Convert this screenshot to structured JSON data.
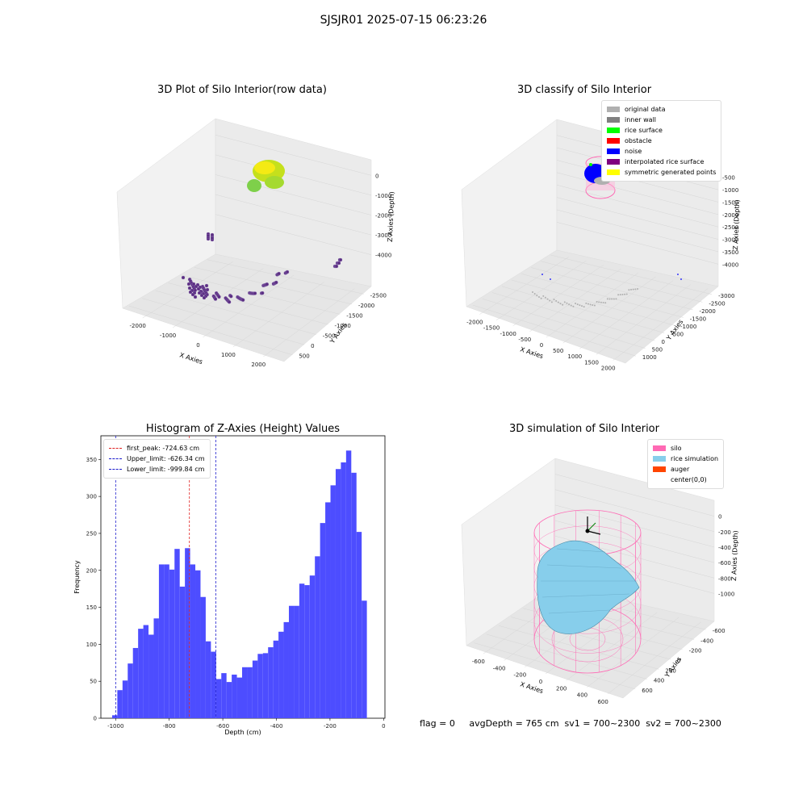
{
  "suptitle": "SJSJR01 2025-07-15 06:23:26",
  "footer": "flag = 0     avgDepth = 765 cm  sv1 = 700~2300  sv2 = 700~2300",
  "panels": {
    "raw": {
      "title": "3D Plot of Silo Interior(row data)",
      "xlabel": "X Axies",
      "ylabel": "Y Axies",
      "zlabel": "Z Axies (Depth)",
      "xticks": [
        "-2000",
        "-1000",
        "0",
        "1000",
        "2000"
      ],
      "yticks": [
        "500",
        "0",
        "-500",
        "-1000",
        "-1500",
        "-2000",
        "-2500"
      ],
      "zticks": [
        "0",
        "-1000",
        "-2000",
        "-3000",
        "-4000"
      ]
    },
    "classify": {
      "title": "3D classify of Silo Interior",
      "xlabel": "X Axies",
      "ylabel": "Y Axies",
      "zlabel": "Z Axies (Depth)",
      "xticks": [
        "-2000",
        "-1500",
        "-1000",
        "-500",
        "0",
        "500",
        "1000",
        "1500",
        "2000"
      ],
      "yticks": [
        "1000",
        "500",
        "0",
        "-500",
        "-1000",
        "-1500",
        "-2000",
        "-2500",
        "-3000"
      ],
      "zticks": [
        "-500",
        "-1000",
        "-1500",
        "-2000",
        "-2500",
        "-3000",
        "-3500",
        "-4000"
      ],
      "legend": [
        {
          "label": "original data",
          "color": "#b0b0b0"
        },
        {
          "label": "inner wall",
          "color": "#808080"
        },
        {
          "label": "rice surface",
          "color": "#00ff00"
        },
        {
          "label": "obstacle",
          "color": "#ff0000"
        },
        {
          "label": "noise",
          "color": "#0000ff"
        },
        {
          "label": "interpolated rice surface",
          "color": "#800080"
        },
        {
          "label": "symmetric generated points",
          "color": "#ffff00"
        }
      ]
    },
    "sim": {
      "title": "3D simulation of Silo Interior",
      "xlabel": "X Axies",
      "ylabel": "Y Axies",
      "zlabel": "Z Axies (Depth)",
      "xticks": [
        "-600",
        "-400",
        "-200",
        "0",
        "200",
        "400",
        "600"
      ],
      "yticks": [
        "600",
        "400",
        "200",
        "0",
        "-200",
        "-400",
        "-600"
      ],
      "zticks": [
        "0",
        "-200",
        "-400",
        "-600",
        "-800",
        "-1000"
      ],
      "legend": [
        {
          "label": "silo",
          "color": "#ff69b4"
        },
        {
          "label": "rice simulation",
          "color": "#87ceeb"
        },
        {
          "label": "auger",
          "color": "#ff4500"
        },
        {
          "label": "center(0,0)",
          "color": "#ffffff"
        }
      ]
    }
  },
  "chart_data": {
    "type": "bar",
    "title": "Histogram of Z-Axies (Height) Values",
    "xlabel": "Depth (cm)",
    "ylabel": "Frequency",
    "xlim": [
      -1055,
      5
    ],
    "ylim": [
      0,
      382
    ],
    "xticks": [
      -1000,
      -800,
      -600,
      -400,
      -200,
      0
    ],
    "yticks": [
      0,
      50,
      100,
      150,
      200,
      250,
      300,
      350
    ],
    "bar_color": "#4d4dff",
    "bin_start": -1013,
    "bin_width": 19.4,
    "values": [
      4,
      38,
      51,
      74,
      95,
      121,
      126,
      113,
      135,
      208,
      208,
      201,
      229,
      178,
      230,
      208,
      200,
      164,
      104,
      90,
      53,
      61,
      49,
      59,
      55,
      69,
      69,
      78,
      87,
      88,
      96,
      105,
      117,
      130,
      152,
      152,
      182,
      180,
      193,
      219,
      264,
      292,
      315,
      337,
      346,
      362,
      332,
      252,
      159
    ],
    "lines": [
      {
        "label": "first_peak: -724.63 cm",
        "x": -724.63,
        "color": "#e02020"
      },
      {
        "label": "Upper_limit: -626.34 cm",
        "x": -626.34,
        "color": "#1a1acc"
      },
      {
        "label": "Lower_limit: -999.84 cm",
        "x": -999.84,
        "color": "#1a1acc"
      }
    ]
  }
}
